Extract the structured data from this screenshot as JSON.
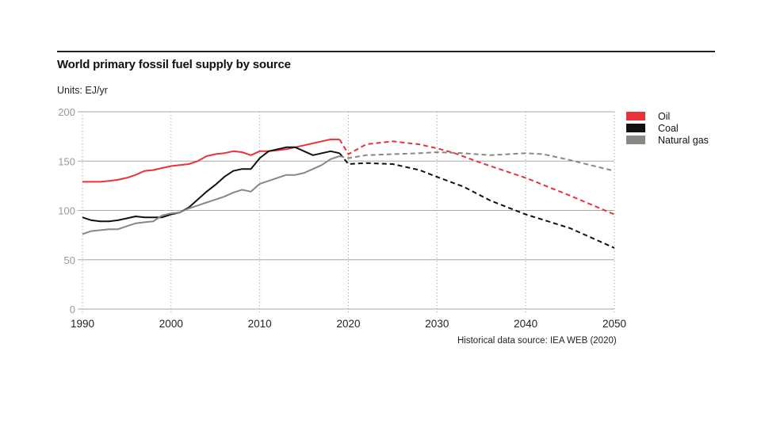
{
  "chart_data": {
    "type": "line",
    "title": "World primary fossil fuel supply by source",
    "subtitle": "Units: EJ/yr",
    "xlabel": "",
    "ylabel": "",
    "xlim": [
      1990,
      2050
    ],
    "ylim": [
      0,
      200
    ],
    "x_ticks": [
      1990,
      2000,
      2010,
      2020,
      2030,
      2040,
      2050
    ],
    "y_ticks": [
      0,
      50,
      100,
      150,
      200
    ],
    "grid": {
      "horizontal": "solid",
      "vertical": "dotted"
    },
    "legend_position": "top-right",
    "source_note": "Historical data source: IEA WEB (2020)",
    "series": [
      {
        "name": "Oil",
        "color": "#e8323c",
        "historical": {
          "x": [
            1990,
            1991,
            1992,
            1993,
            1994,
            1995,
            1996,
            1997,
            1998,
            1999,
            2000,
            2001,
            2002,
            2003,
            2004,
            2005,
            2006,
            2007,
            2008,
            2009,
            2010,
            2011,
            2012,
            2013,
            2014,
            2015,
            2016,
            2017,
            2018,
            2019
          ],
          "y": [
            129,
            129,
            129,
            130,
            131,
            133,
            136,
            140,
            141,
            143,
            145,
            146,
            147,
            150,
            155,
            157,
            158,
            160,
            159,
            156,
            160,
            160,
            161,
            162,
            164,
            166,
            168,
            170,
            172,
            172
          ]
        },
        "projection": {
          "x": [
            2019,
            2020,
            2022,
            2025,
            2028,
            2030,
            2032,
            2035,
            2040,
            2045,
            2050
          ],
          "y": [
            172,
            157,
            167,
            170,
            167,
            163,
            158,
            148,
            133,
            115,
            96
          ]
        }
      },
      {
        "name": "Coal",
        "color": "#111111",
        "historical": {
          "x": [
            1990,
            1991,
            1992,
            1993,
            1994,
            1995,
            1996,
            1997,
            1998,
            1999,
            2000,
            2001,
            2002,
            2003,
            2004,
            2005,
            2006,
            2007,
            2008,
            2009,
            2010,
            2011,
            2012,
            2013,
            2014,
            2015,
            2016,
            2017,
            2018,
            2019
          ],
          "y": [
            93,
            90,
            89,
            89,
            90,
            92,
            94,
            93,
            93,
            93,
            96,
            98,
            103,
            111,
            119,
            126,
            134,
            140,
            142,
            142,
            153,
            160,
            162,
            164,
            164,
            160,
            156,
            158,
            160,
            158
          ]
        },
        "projection": {
          "x": [
            2019,
            2020,
            2022,
            2025,
            2028,
            2030,
            2033,
            2036,
            2040,
            2045,
            2050
          ],
          "y": [
            158,
            147,
            148,
            147,
            141,
            134,
            124,
            110,
            96,
            82,
            62
          ]
        }
      },
      {
        "name": "Natural gas",
        "color": "#8a8782",
        "historical": {
          "x": [
            1990,
            1991,
            1992,
            1993,
            1994,
            1995,
            1996,
            1997,
            1998,
            1999,
            2000,
            2001,
            2002,
            2003,
            2004,
            2005,
            2006,
            2007,
            2008,
            2009,
            2010,
            2011,
            2012,
            2013,
            2014,
            2015,
            2016,
            2017,
            2018,
            2019
          ],
          "y": [
            76,
            79,
            80,
            81,
            81,
            84,
            87,
            88,
            89,
            95,
            97,
            98,
            102,
            105,
            108,
            111,
            114,
            118,
            121,
            119,
            127,
            130,
            133,
            136,
            136,
            138,
            142,
            146,
            152,
            155
          ]
        },
        "projection": {
          "x": [
            2019,
            2020,
            2022,
            2025,
            2028,
            2030,
            2033,
            2036,
            2040,
            2042,
            2045,
            2050
          ],
          "y": [
            155,
            153,
            156,
            157,
            158,
            159,
            158,
            156,
            158,
            157,
            151,
            140
          ]
        }
      }
    ]
  }
}
